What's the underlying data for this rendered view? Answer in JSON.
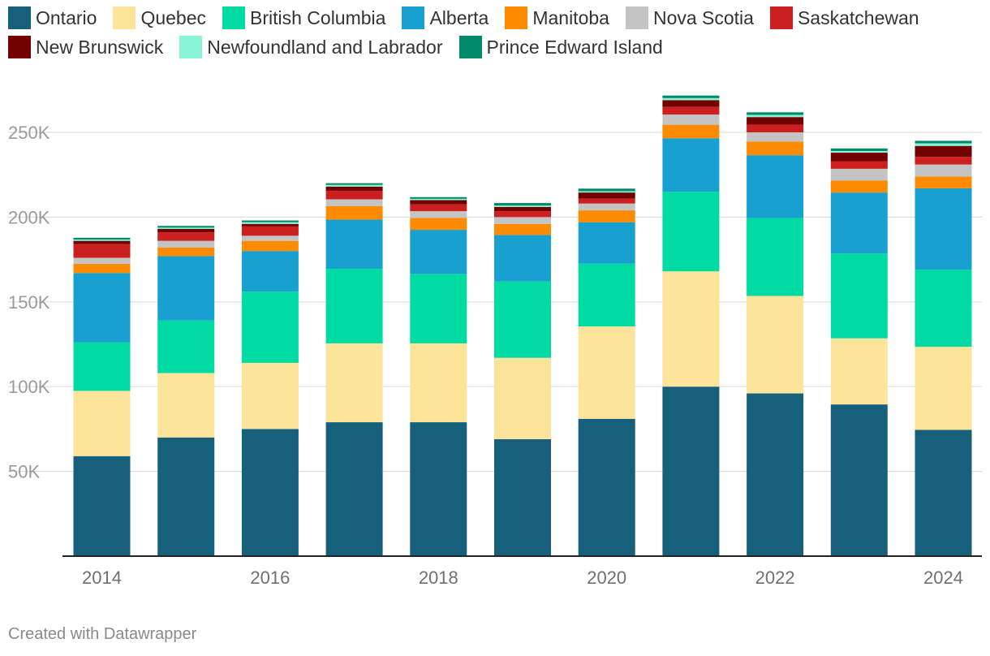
{
  "credit": "Created with Datawrapper",
  "chart_data": {
    "type": "bar",
    "stacked": true,
    "categories": [
      "2014",
      "2015",
      "2016",
      "2017",
      "2018",
      "2019",
      "2020",
      "2021",
      "2022",
      "2023",
      "2024"
    ],
    "x_tick_labels": [
      "2014",
      "2016",
      "2018",
      "2020",
      "2022",
      "2024"
    ],
    "y_ticks": [
      50000,
      100000,
      150000,
      200000,
      250000
    ],
    "y_tick_labels": [
      "50K",
      "100K",
      "150K",
      "200K",
      "250K"
    ],
    "ylim": [
      0,
      275000
    ],
    "title": "",
    "xlabel": "",
    "ylabel": "",
    "grid": true,
    "legend_position": "top",
    "series": [
      {
        "name": "Ontario",
        "color": "#17607c",
        "values": [
          59000,
          70000,
          75000,
          79000,
          79000,
          69000,
          81000,
          100000,
          96000,
          89500,
          74500
        ]
      },
      {
        "name": "Quebec",
        "color": "#fde49b",
        "values": [
          38500,
          38000,
          39000,
          46500,
          46500,
          48000,
          54500,
          68000,
          57500,
          39000,
          49000
        ]
      },
      {
        "name": "British Columbia",
        "color": "#00dba4",
        "values": [
          28500,
          31000,
          42000,
          44000,
          41000,
          45000,
          37000,
          47000,
          46000,
          50000,
          45500
        ]
      },
      {
        "name": "Alberta",
        "color": "#18a0d1",
        "values": [
          41000,
          38000,
          24000,
          29000,
          26000,
          27500,
          24500,
          31500,
          37000,
          36000,
          48000
        ]
      },
      {
        "name": "Manitoba",
        "color": "#ff8c00",
        "values": [
          5500,
          5000,
          6000,
          8000,
          7000,
          6500,
          7000,
          8000,
          8000,
          7000,
          7000
        ]
      },
      {
        "name": "Nova Scotia",
        "color": "#c4c4c4",
        "values": [
          3500,
          4000,
          3000,
          4000,
          4000,
          4000,
          4000,
          6000,
          5500,
          7000,
          7000
        ]
      },
      {
        "name": "Saskatchewan",
        "color": "#cc1f1f",
        "values": [
          8000,
          5000,
          5500,
          5000,
          4000,
          3500,
          3000,
          4500,
          4500,
          4500,
          4500
        ]
      },
      {
        "name": "New Brunswick",
        "color": "#730000",
        "values": [
          2000,
          2000,
          1500,
          2500,
          2500,
          2500,
          3500,
          4000,
          4500,
          5000,
          6500
        ]
      },
      {
        "name": "Newfoundland and Labrador",
        "color": "#8af5d6",
        "values": [
          800,
          800,
          1000,
          1000,
          800,
          800,
          800,
          1200,
          1300,
          1000,
          1500
        ]
      },
      {
        "name": "Prince Edward Island",
        "color": "#008a6a",
        "values": [
          1000,
          1000,
          1000,
          1000,
          1000,
          1500,
          1500,
          1500,
          1500,
          1500,
          1500
        ]
      }
    ]
  }
}
